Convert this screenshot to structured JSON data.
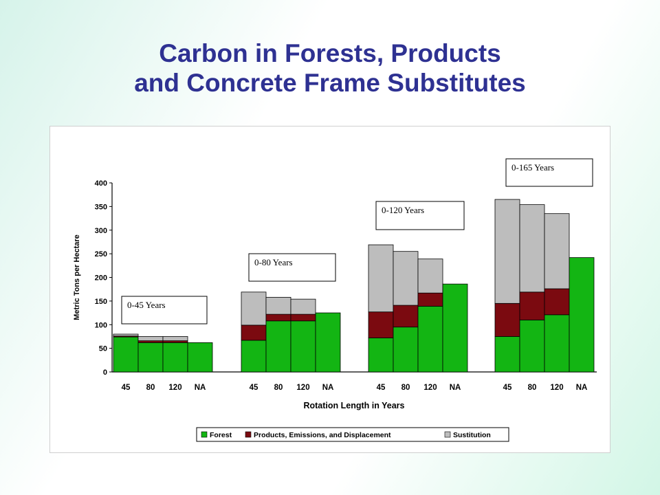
{
  "slide": {
    "title_line1": "Carbon in Forests, Products",
    "title_line2": "and Concrete Frame Substitutes"
  },
  "chart_data": {
    "type": "bar",
    "stacked": true,
    "title": "",
    "xlabel": "Rotation Length in Years",
    "ylabel": "Metric Tons per Hectare",
    "ylim": [
      0,
      400
    ],
    "yticks": [
      0,
      50,
      100,
      150,
      200,
      250,
      300,
      350,
      400
    ],
    "legend_position": "bottom-right",
    "series_colors": {
      "Forest": "#13b513",
      "Products, Emissions, and Displacement": "#7b0a10",
      "Sustitution": "#bdbdbd"
    },
    "series_order": [
      "Forest",
      "Products, Emissions, and Displacement",
      "Sustitution"
    ],
    "groups": [
      {
        "label": "0-45 Years",
        "categories": [
          "45",
          "80",
          "120",
          "NA"
        ],
        "series": [
          {
            "name": "Forest",
            "values": [
              74,
              62,
              62,
              62
            ]
          },
          {
            "name": "Products, Emissions, and Displacement",
            "values": [
              2,
              4,
              4,
              0
            ]
          },
          {
            "name": "Sustitution",
            "values": [
              4,
              9,
              9,
              0
            ]
          }
        ]
      },
      {
        "label": "0-80 Years",
        "categories": [
          "45",
          "80",
          "120",
          "NA"
        ],
        "series": [
          {
            "name": "Forest",
            "values": [
              67,
              108,
              108,
              125
            ]
          },
          {
            "name": "Products, Emissions, and Displacement",
            "values": [
              32,
              14,
              14,
              0
            ]
          },
          {
            "name": "Sustitution",
            "values": [
              70,
              36,
              32,
              0
            ]
          }
        ]
      },
      {
        "label": "0-120 Years",
        "categories": [
          "45",
          "80",
          "120",
          "NA"
        ],
        "series": [
          {
            "name": "Forest",
            "values": [
              72,
              95,
              139,
              186
            ]
          },
          {
            "name": "Products, Emissions, and Displacement",
            "values": [
              55,
              46,
              28,
              0
            ]
          },
          {
            "name": "Sustitution",
            "values": [
              142,
              114,
              72,
              0
            ]
          }
        ]
      },
      {
        "label": "0-165 Years",
        "categories": [
          "45",
          "80",
          "120",
          "NA"
        ],
        "series": [
          {
            "name": "Forest",
            "values": [
              75,
              110,
              121,
              242
            ]
          },
          {
            "name": "Products, Emissions, and Displacement",
            "values": [
              70,
              59,
              55,
              0
            ]
          },
          {
            "name": "Sustitution",
            "values": [
              220,
              185,
              159,
              0
            ]
          }
        ]
      }
    ]
  }
}
